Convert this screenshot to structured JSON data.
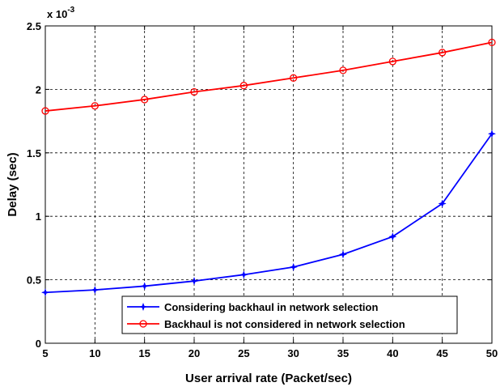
{
  "chart_data": {
    "type": "line",
    "title": "",
    "xlabel": "User arrival rate (Packet/sec)",
    "ylabel": "Delay (sec)",
    "y_multiplier_label": "x 10",
    "y_multiplier_exponent": "-3",
    "xlim": [
      5,
      50
    ],
    "ylim": [
      0,
      2.5
    ],
    "x_ticks": [
      5,
      10,
      15,
      20,
      25,
      30,
      35,
      40,
      45,
      50
    ],
    "y_ticks": [
      0,
      0.5,
      1,
      1.5,
      2,
      2.5
    ],
    "y_tick_labels": [
      "0",
      "0.5",
      "1",
      "1.5",
      "2",
      "2.5"
    ],
    "grid": true,
    "legend_position": "bottom-right",
    "x": [
      5,
      10,
      15,
      20,
      25,
      30,
      35,
      40,
      45,
      50
    ],
    "series": [
      {
        "name": "Considering backhaul in network selection",
        "color": "#0000ff",
        "marker": "star",
        "values": [
          0.4,
          0.42,
          0.45,
          0.49,
          0.54,
          0.6,
          0.7,
          0.84,
          1.1,
          1.65
        ]
      },
      {
        "name": "Backhaul is not considered in network selection",
        "color": "#ff0000",
        "marker": "circle",
        "values": [
          1.83,
          1.87,
          1.92,
          1.98,
          2.03,
          2.09,
          2.15,
          2.22,
          2.29,
          2.37
        ]
      }
    ]
  }
}
